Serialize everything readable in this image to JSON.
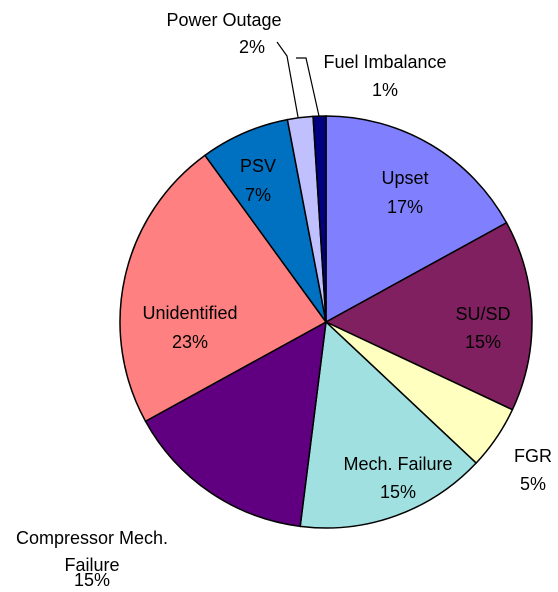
{
  "chart_data": {
    "type": "pie",
    "categories": [
      "Upset",
      "SU/SD",
      "FGR",
      "Mech. Failure",
      "Compressor Mech. Failure",
      "Unidentified",
      "PSV",
      "Power Outage",
      "Fuel Imbalance"
    ],
    "values": [
      17,
      15,
      5,
      15,
      15,
      23,
      7,
      2,
      1
    ],
    "value_labels": [
      "17%",
      "15%",
      "5%",
      "15%",
      "15%",
      "23%",
      "7%",
      "2%",
      "1%"
    ],
    "colors": [
      "#8080ff",
      "#802060",
      "#ffffc0",
      "#a0e0e0",
      "#600080",
      "#ff8080",
      "#0070c0",
      "#c0c0ff",
      "#000080"
    ]
  }
}
